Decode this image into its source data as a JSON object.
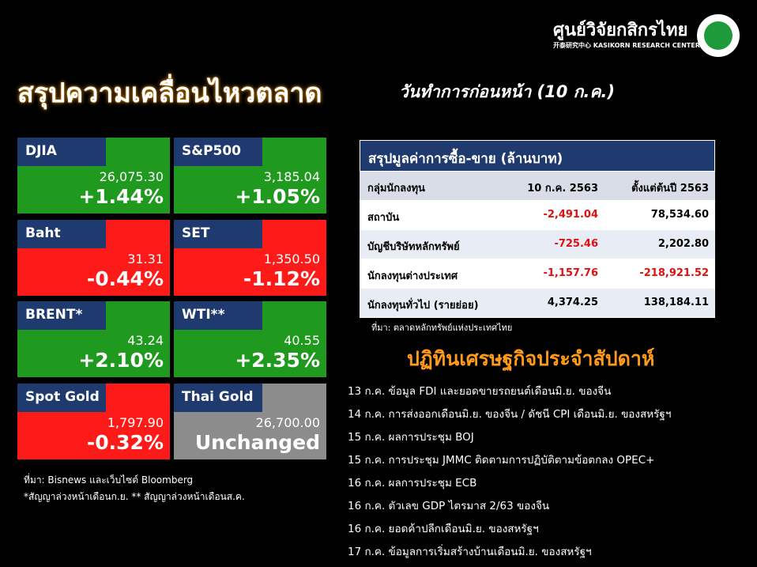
{
  "header": {
    "logo_th": "ศูนย์วิจัยกสิกรไทย",
    "logo_en": "开泰研究中心 KASIKORN RESEARCH CENTER",
    "title": "สรุปความเคลื่อนไหวตลาด",
    "subtitle": "วันทำการก่อนหน้า (10 ก.ค.)"
  },
  "tiles": [
    {
      "name": "DJIA",
      "value": "26,075.30",
      "change": "+1.44%",
      "color": "#1f9a1f"
    },
    {
      "name": "S&P500",
      "value": "3,185.04",
      "change": "+1.05%",
      "color": "#1f9a1f"
    },
    {
      "name": "Baht",
      "value": "31.31",
      "change": "-0.44%",
      "color": "#ff1a1a"
    },
    {
      "name": "SET",
      "value": "1,350.50",
      "change": "-1.12%",
      "color": "#ff1a1a"
    },
    {
      "name": "BRENT*",
      "value": "43.24",
      "change": "+2.10%",
      "color": "#1f9a1f"
    },
    {
      "name": "WTI**",
      "value": "40.55",
      "change": "+2.35%",
      "color": "#1f9a1f"
    },
    {
      "name": "Spot Gold",
      "value": "1,797.90",
      "change": "-0.32%",
      "color": "#ff1a1a"
    },
    {
      "name": "Thai Gold",
      "value": "26,700.00",
      "change": "Unchanged",
      "color": "#8c8c8c"
    }
  ],
  "tile_notes": [
    "ที่มา: Bisnews และเว็บไซต์ Bloomberg",
    "*สัญญาล่วงหน้าเดือนก.ย. ** สัญญาล่วงหน้าเดือนส.ค."
  ],
  "table": {
    "title": "สรุปมูลค่าการซื้อ-ขาย (ล้านบาท)",
    "header": [
      "กลุ่มนักลงทุน",
      "10 ก.ค. 2563",
      "ตั้งแต่ต้นปี 2563"
    ],
    "rows": [
      [
        "สถาบัน",
        "-2,491.04",
        "78,534.60"
      ],
      [
        "บัญชีบริษัทหลักทรัพย์",
        "-725.46",
        "2,202.80"
      ],
      [
        "นักลงทุนต่างประเทศ",
        "-1,157.76",
        "-218,921.52"
      ],
      [
        "นักลงทุนทั่วไป (รายย่อย)",
        "4,374.25",
        "138,184.11"
      ]
    ],
    "source": "ที่มา: ตลาดหลักทรัพย์แห่งประเทศไทย"
  },
  "calendar": {
    "title": "ปฏิทินเศรษฐกิจประจำสัปดาห์",
    "events": [
      "13 ก.ค. ข้อมูล FDI และยอดขายรถยนต์เดือนมิ.ย. ของจีน",
      "14 ก.ค. การส่งออกเดือนมิ.ย. ของจีน / ดัชนี CPI เดือนมิ.ย. ของสหรัฐฯ",
      "15 ก.ค. ผลการประชุม BOJ",
      "15 ก.ค. การประชุม JMMC ติดตามการปฏิบัติตามข้อตกลง OPEC+",
      "16 ก.ค. ผลการประชุม ECB",
      "16 ก.ค. ตัวเลข GDP ไตรมาส 2/63 ของจีน",
      "16 ก.ค. ยอดค้าปลีกเดือนมิ.ย. ของสหรัฐฯ",
      "17 ก.ค. ข้อมูลการเริ่มสร้างบ้านเดือนมิ.ย. ของสหรัฐฯ"
    ]
  }
}
